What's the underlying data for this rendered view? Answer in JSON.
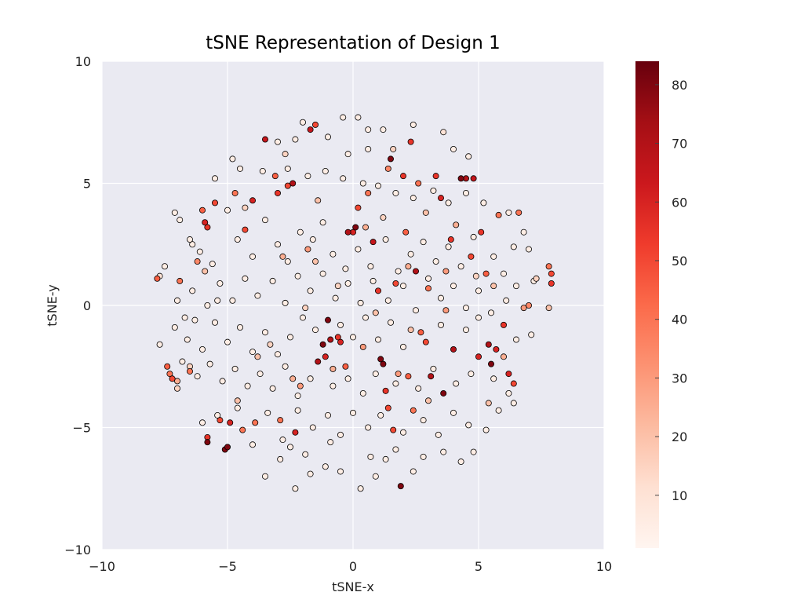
{
  "chart_data": {
    "type": "scatter",
    "title": "tSNE Representation of Design 1",
    "xlabel": "tSNE-x",
    "ylabel": "tSNE-y",
    "xlim": [
      -10,
      10
    ],
    "ylim": [
      -10,
      10
    ],
    "x_ticks": [
      "−10",
      "−5",
      "0",
      "5",
      "10"
    ],
    "y_ticks": [
      "10",
      "5",
      "0",
      "−5",
      "−10"
    ],
    "grid": true,
    "colormap": "Reds",
    "colorbar": {
      "range": [
        1,
        84
      ],
      "tick_labels": [
        "10",
        "20",
        "30",
        "40",
        "50",
        "60",
        "70",
        "80"
      ],
      "tick_values": [
        10,
        20,
        30,
        40,
        50,
        60,
        70,
        80
      ],
      "colors": [
        "#fff5f0",
        "#fee0d2",
        "#fcbba1",
        "#fc9272",
        "#fb6a4a",
        "#ef3b2c",
        "#cb181d",
        "#a50f15",
        "#67000d"
      ]
    },
    "plot_background": "#eaeaf2",
    "grid_color": "#ffffff",
    "marker_edge": "#000000",
    "points": [
      [
        -7.8,
        1.1,
        45
      ],
      [
        -7.7,
        1.2,
        10
      ],
      [
        -7.7,
        -1.6,
        5
      ],
      [
        -7.4,
        -2.5,
        45
      ],
      [
        -7.3,
        -2.8,
        40
      ],
      [
        -7.2,
        -3.0,
        50
      ],
      [
        -7.1,
        3.8,
        5
      ],
      [
        -7.0,
        -3.4,
        15
      ],
      [
        -6.9,
        1.0,
        40
      ],
      [
        -6.7,
        -0.5,
        5
      ],
      [
        -6.5,
        -2.7,
        40
      ],
      [
        -6.4,
        2.5,
        5
      ],
      [
        -6.2,
        1.8,
        35
      ],
      [
        -6.0,
        3.9,
        45
      ],
      [
        -5.9,
        3.4,
        60
      ],
      [
        -5.8,
        3.2,
        55
      ],
      [
        -5.8,
        -5.4,
        55
      ],
      [
        -5.8,
        -5.6,
        80
      ],
      [
        -5.5,
        4.2,
        50
      ],
      [
        -5.3,
        -4.7,
        50
      ],
      [
        -5.1,
        -5.9,
        80
      ],
      [
        -5.0,
        -5.8,
        80
      ],
      [
        -4.9,
        -4.8,
        60
      ],
      [
        -4.7,
        4.6,
        40
      ],
      [
        -4.4,
        -5.1,
        40
      ],
      [
        -4.3,
        3.1,
        50
      ],
      [
        -4.0,
        4.3,
        60
      ],
      [
        -3.9,
        -4.8,
        40
      ],
      [
        -3.5,
        6.8,
        65
      ],
      [
        -3.1,
        5.3,
        45
      ],
      [
        -3.0,
        4.6,
        55
      ],
      [
        -2.9,
        -4.7,
        40
      ],
      [
        -2.6,
        4.9,
        50
      ],
      [
        -2.4,
        5.0,
        70
      ],
      [
        -2.3,
        -5.2,
        60
      ],
      [
        -2.1,
        -3.3,
        30
      ],
      [
        -1.8,
        2.3,
        30
      ],
      [
        -1.7,
        7.2,
        65
      ],
      [
        -1.5,
        7.4,
        50
      ],
      [
        -1.4,
        -2.3,
        70
      ],
      [
        -1.2,
        -1.6,
        80
      ],
      [
        -1.1,
        -2.1,
        60
      ],
      [
        -1.0,
        -0.6,
        80
      ],
      [
        -0.9,
        -1.4,
        70
      ],
      [
        -0.6,
        -1.3,
        55
      ],
      [
        -0.5,
        -1.5,
        60
      ],
      [
        -0.3,
        -2.5,
        45
      ],
      [
        -0.2,
        3.0,
        70
      ],
      [
        0.0,
        3.0,
        60
      ],
      [
        0.1,
        3.2,
        80
      ],
      [
        0.2,
        4.0,
        50
      ],
      [
        0.6,
        4.6,
        40
      ],
      [
        0.8,
        2.6,
        65
      ],
      [
        1.0,
        0.6,
        55
      ],
      [
        1.1,
        -2.2,
        80
      ],
      [
        1.2,
        -2.4,
        80
      ],
      [
        1.3,
        -3.5,
        55
      ],
      [
        1.4,
        -4.2,
        50
      ],
      [
        1.4,
        5.6,
        35
      ],
      [
        1.5,
        6.0,
        80
      ],
      [
        1.6,
        -5.1,
        50
      ],
      [
        1.7,
        0.9,
        50
      ],
      [
        1.9,
        -7.4,
        80
      ],
      [
        2.0,
        5.3,
        55
      ],
      [
        2.1,
        3.0,
        45
      ],
      [
        2.2,
        -2.9,
        45
      ],
      [
        2.3,
        6.7,
        55
      ],
      [
        2.4,
        -4.3,
        40
      ],
      [
        2.5,
        1.4,
        70
      ],
      [
        2.6,
        5.0,
        40
      ],
      [
        2.7,
        -1.1,
        45
      ],
      [
        2.9,
        -1.5,
        50
      ],
      [
        3.0,
        0.7,
        40
      ],
      [
        3.1,
        -2.9,
        70
      ],
      [
        3.3,
        5.3,
        55
      ],
      [
        3.5,
        4.4,
        60
      ],
      [
        3.6,
        -3.6,
        80
      ],
      [
        3.9,
        2.7,
        55
      ],
      [
        4.0,
        -1.8,
        70
      ],
      [
        4.3,
        5.2,
        80
      ],
      [
        4.5,
        5.2,
        70
      ],
      [
        4.7,
        2.0,
        50
      ],
      [
        4.8,
        5.2,
        65
      ],
      [
        5.0,
        -2.1,
        60
      ],
      [
        5.1,
        3.0,
        55
      ],
      [
        5.3,
        1.3,
        45
      ],
      [
        5.4,
        -1.6,
        70
      ],
      [
        5.5,
        -2.4,
        80
      ],
      [
        5.7,
        -1.8,
        60
      ],
      [
        5.8,
        3.7,
        40
      ],
      [
        6.0,
        -0.8,
        55
      ],
      [
        6.2,
        -2.8,
        60
      ],
      [
        6.4,
        -3.2,
        50
      ],
      [
        6.6,
        3.8,
        40
      ],
      [
        6.8,
        -0.1,
        30
      ],
      [
        7.0,
        0.0,
        35
      ],
      [
        7.9,
        1.3,
        50
      ],
      [
        7.9,
        0.9,
        55
      ],
      [
        7.8,
        1.6,
        40
      ],
      [
        7.8,
        -0.1,
        20
      ],
      [
        -2.0,
        7.5,
        5
      ],
      [
        -0.4,
        7.7,
        5
      ],
      [
        0.2,
        7.7,
        5
      ],
      [
        0.6,
        7.2,
        5
      ],
      [
        1.2,
        7.2,
        5
      ],
      [
        2.4,
        7.4,
        5
      ],
      [
        3.6,
        7.1,
        10
      ],
      [
        4.0,
        6.4,
        5
      ],
      [
        4.6,
        6.1,
        5
      ],
      [
        -4.8,
        6.0,
        5
      ],
      [
        -3.0,
        6.7,
        5
      ],
      [
        -2.3,
        6.8,
        5
      ],
      [
        -1.0,
        6.9,
        5
      ],
      [
        -0.2,
        6.2,
        5
      ],
      [
        0.6,
        6.4,
        5
      ],
      [
        -5.5,
        5.2,
        5
      ],
      [
        -4.5,
        5.6,
        5
      ],
      [
        -3.6,
        5.5,
        5
      ],
      [
        -2.6,
        5.6,
        5
      ],
      [
        -1.8,
        5.3,
        5
      ],
      [
        -1.1,
        5.5,
        5
      ],
      [
        -0.4,
        5.2,
        5
      ],
      [
        0.4,
        5.0,
        5
      ],
      [
        1.0,
        4.9,
        5
      ],
      [
        1.7,
        4.6,
        5
      ],
      [
        2.4,
        4.4,
        5
      ],
      [
        3.2,
        4.7,
        5
      ],
      [
        3.8,
        4.2,
        5
      ],
      [
        4.5,
        4.6,
        5
      ],
      [
        5.2,
        4.2,
        5
      ],
      [
        6.2,
        3.8,
        5
      ],
      [
        6.8,
        3.0,
        5
      ],
      [
        6.4,
        2.4,
        5
      ],
      [
        7.0,
        2.3,
        5
      ],
      [
        -6.9,
        3.5,
        5
      ],
      [
        -6.5,
        2.7,
        5
      ],
      [
        -6.1,
        2.2,
        5
      ],
      [
        -5.6,
        1.7,
        5
      ],
      [
        -5.0,
        3.9,
        5
      ],
      [
        -4.6,
        2.7,
        5
      ],
      [
        -4.0,
        2.0,
        5
      ],
      [
        -3.5,
        3.5,
        5
      ],
      [
        -3.0,
        2.5,
        5
      ],
      [
        -2.6,
        1.8,
        5
      ],
      [
        -2.1,
        3.0,
        5
      ],
      [
        -1.6,
        2.7,
        5
      ],
      [
        -1.2,
        3.4,
        5
      ],
      [
        -0.8,
        2.1,
        5
      ],
      [
        -0.3,
        1.5,
        5
      ],
      [
        0.2,
        2.3,
        5
      ],
      [
        0.7,
        1.6,
        5
      ],
      [
        1.3,
        2.7,
        5
      ],
      [
        1.8,
        1.4,
        5
      ],
      [
        2.3,
        2.1,
        5
      ],
      [
        2.8,
        2.6,
        5
      ],
      [
        3.3,
        1.8,
        5
      ],
      [
        3.8,
        2.4,
        5
      ],
      [
        4.3,
        1.6,
        5
      ],
      [
        4.8,
        2.8,
        5
      ],
      [
        5.6,
        2.0,
        5
      ],
      [
        6.0,
        1.3,
        5
      ],
      [
        6.5,
        0.8,
        5
      ],
      [
        7.2,
        1.0,
        5
      ],
      [
        -7.5,
        1.6,
        5
      ],
      [
        -7.0,
        0.2,
        5
      ],
      [
        -6.4,
        0.6,
        5
      ],
      [
        -5.8,
        0.0,
        5
      ],
      [
        -5.3,
        0.9,
        5
      ],
      [
        -4.8,
        0.2,
        5
      ],
      [
        -4.3,
        1.1,
        5
      ],
      [
        -3.8,
        0.4,
        5
      ],
      [
        -3.2,
        1.0,
        5
      ],
      [
        -2.7,
        0.1,
        5
      ],
      [
        -2.2,
        1.2,
        5
      ],
      [
        -1.7,
        0.6,
        5
      ],
      [
        -1.2,
        1.3,
        5
      ],
      [
        -0.7,
        0.3,
        5
      ],
      [
        -0.2,
        0.9,
        5
      ],
      [
        0.3,
        0.1,
        5
      ],
      [
        0.8,
        1.0,
        5
      ],
      [
        1.4,
        0.2,
        5
      ],
      [
        2.0,
        0.8,
        5
      ],
      [
        2.5,
        -0.2,
        5
      ],
      [
        3.0,
        1.1,
        5
      ],
      [
        3.5,
        0.3,
        5
      ],
      [
        4.0,
        0.8,
        5
      ],
      [
        4.5,
        -0.1,
        5
      ],
      [
        5.0,
        0.6,
        5
      ],
      [
        5.5,
        -0.3,
        5
      ],
      [
        6.1,
        0.2,
        5
      ],
      [
        -7.1,
        -0.9,
        5
      ],
      [
        -6.6,
        -1.4,
        5
      ],
      [
        -6.0,
        -1.8,
        5
      ],
      [
        -5.5,
        -0.7,
        5
      ],
      [
        -5.0,
        -1.5,
        5
      ],
      [
        -4.5,
        -0.9,
        5
      ],
      [
        -4.0,
        -1.9,
        5
      ],
      [
        -3.5,
        -1.1,
        5
      ],
      [
        -3.0,
        -2.0,
        5
      ],
      [
        -2.5,
        -1.3,
        5
      ],
      [
        -2.0,
        -0.5,
        5
      ],
      [
        -1.5,
        -1.0,
        5
      ],
      [
        -0.5,
        -0.8,
        5
      ],
      [
        0.0,
        -1.3,
        5
      ],
      [
        0.5,
        -0.5,
        5
      ],
      [
        1.0,
        -1.4,
        5
      ],
      [
        1.5,
        -0.7,
        5
      ],
      [
        2.0,
        -1.7,
        5
      ],
      [
        3.5,
        -0.8,
        5
      ],
      [
        4.5,
        -1.0,
        5
      ],
      [
        5.0,
        -0.5,
        5
      ],
      [
        6.5,
        -1.4,
        5
      ],
      [
        7.1,
        -1.2,
        5
      ],
      [
        -6.8,
        -2.3,
        5
      ],
      [
        -6.2,
        -2.9,
        5
      ],
      [
        -5.7,
        -2.4,
        5
      ],
      [
        -5.2,
        -3.1,
        5
      ],
      [
        -4.7,
        -2.6,
        5
      ],
      [
        -4.2,
        -3.3,
        5
      ],
      [
        -3.7,
        -2.8,
        5
      ],
      [
        -3.2,
        -3.4,
        5
      ],
      [
        -2.7,
        -2.5,
        5
      ],
      [
        -2.2,
        -3.7,
        5
      ],
      [
        -1.7,
        -3.0,
        5
      ],
      [
        -0.8,
        -3.3,
        5
      ],
      [
        -0.2,
        -3.0,
        5
      ],
      [
        0.4,
        -3.6,
        5
      ],
      [
        0.9,
        -2.8,
        5
      ],
      [
        1.7,
        -3.2,
        5
      ],
      [
        2.6,
        -3.4,
        5
      ],
      [
        3.2,
        -2.6,
        5
      ],
      [
        4.1,
        -3.2,
        5
      ],
      [
        4.7,
        -2.8,
        5
      ],
      [
        5.6,
        -3.0,
        5
      ],
      [
        6.2,
        -3.6,
        5
      ],
      [
        -6.0,
        -4.8,
        5
      ],
      [
        -5.4,
        -4.5,
        5
      ],
      [
        -4.6,
        -4.2,
        5
      ],
      [
        -4.0,
        -5.7,
        5
      ],
      [
        -3.4,
        -4.4,
        5
      ],
      [
        -2.8,
        -5.5,
        5
      ],
      [
        -2.2,
        -4.3,
        5
      ],
      [
        -1.6,
        -5.0,
        5
      ],
      [
        -1.0,
        -4.5,
        5
      ],
      [
        -0.5,
        -5.3,
        5
      ],
      [
        0.0,
        -4.4,
        5
      ],
      [
        0.6,
        -5.0,
        5
      ],
      [
        1.1,
        -4.5,
        5
      ],
      [
        2.0,
        -5.2,
        5
      ],
      [
        2.8,
        -4.7,
        5
      ],
      [
        3.4,
        -5.3,
        5
      ],
      [
        4.0,
        -4.4,
        5
      ],
      [
        4.6,
        -4.9,
        5
      ],
      [
        5.3,
        -5.1,
        5
      ],
      [
        5.8,
        -4.3,
        5
      ],
      [
        6.4,
        -4.0,
        5
      ],
      [
        -3.5,
        -7.0,
        5
      ],
      [
        -2.9,
        -6.3,
        5
      ],
      [
        -2.3,
        -7.5,
        5
      ],
      [
        -1.7,
        -6.9,
        5
      ],
      [
        -1.1,
        -6.6,
        5
      ],
      [
        -0.5,
        -6.8,
        5
      ],
      [
        0.3,
        -7.5,
        5
      ],
      [
        0.9,
        -7.0,
        5
      ],
      [
        1.3,
        -6.3,
        5
      ],
      [
        1.7,
        -5.9,
        5
      ],
      [
        2.4,
        -6.8,
        5
      ],
      [
        2.8,
        -6.2,
        5
      ],
      [
        3.6,
        -6.0,
        5
      ],
      [
        4.3,
        -6.4,
        5
      ],
      [
        4.8,
        -6.0,
        5
      ],
      [
        -2.5,
        -5.8,
        5
      ],
      [
        -1.9,
        -6.1,
        5
      ],
      [
        0.7,
        -6.2,
        5
      ],
      [
        -0.9,
        -5.6,
        5
      ],
      [
        -6.3,
        -0.6,
        5
      ],
      [
        -5.4,
        0.2,
        5
      ],
      [
        -2.8,
        2.0,
        25
      ],
      [
        -1.9,
        -0.1,
        15
      ],
      [
        -0.6,
        0.8,
        15
      ],
      [
        0.9,
        -0.3,
        20
      ],
      [
        2.2,
        1.6,
        25
      ],
      [
        3.7,
        -0.2,
        30
      ],
      [
        4.9,
        1.2,
        15
      ],
      [
        -3.8,
        -2.1,
        20
      ],
      [
        -2.4,
        -3.0,
        25
      ],
      [
        1.8,
        -2.8,
        30
      ],
      [
        3.0,
        -3.9,
        20
      ],
      [
        -4.3,
        4.0,
        15
      ],
      [
        -1.4,
        4.3,
        20
      ],
      [
        1.2,
        3.6,
        15
      ],
      [
        2.9,
        3.8,
        20
      ],
      [
        4.1,
        3.3,
        25
      ],
      [
        5.6,
        0.8,
        20
      ],
      [
        -5.9,
        1.4,
        20
      ],
      [
        -6.5,
        -2.5,
        15
      ],
      [
        5.4,
        -4.0,
        20
      ],
      [
        -0.8,
        -2.6,
        25
      ],
      [
        0.4,
        -1.7,
        30
      ],
      [
        2.3,
        -1.0,
        20
      ],
      [
        -3.3,
        -1.6,
        15
      ],
      [
        -1.5,
        1.8,
        20
      ],
      [
        0.5,
        3.2,
        25
      ],
      [
        3.7,
        1.4,
        30
      ],
      [
        -4.6,
        -3.9,
        20
      ],
      [
        6.0,
        -2.1,
        25
      ],
      [
        7.3,
        1.1,
        15
      ],
      [
        -7.0,
        -3.1,
        25
      ],
      [
        1.6,
        6.4,
        15
      ],
      [
        -2.7,
        6.2,
        15
      ]
    ]
  }
}
